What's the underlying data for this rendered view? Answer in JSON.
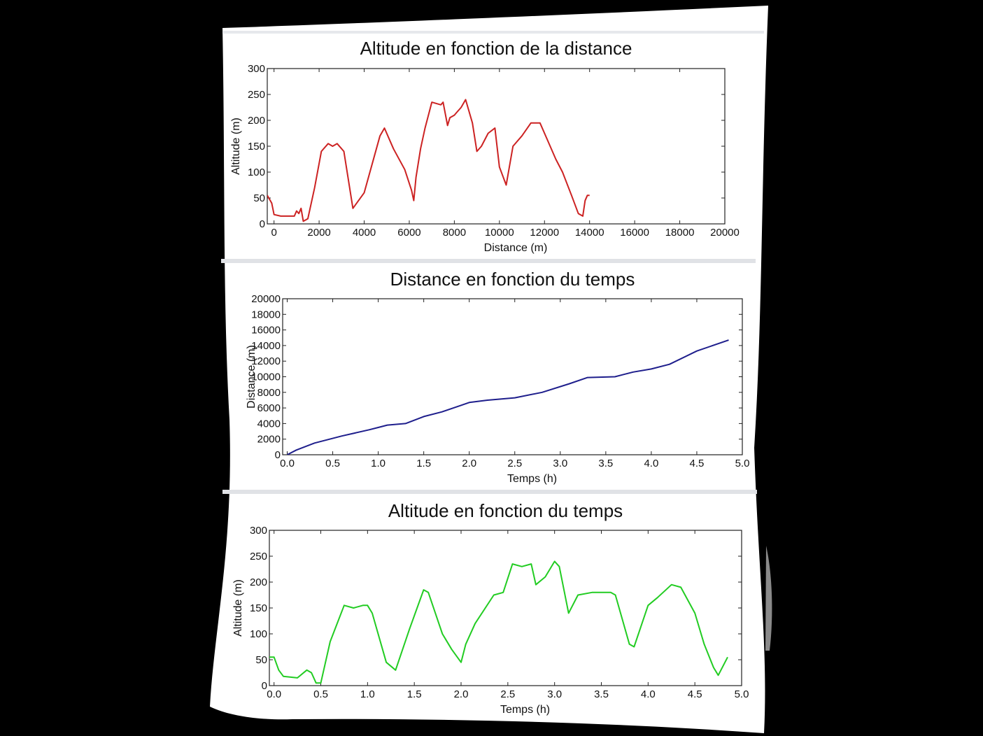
{
  "chart_data": [
    {
      "type": "line",
      "title": "Altitude en fonction de la distance",
      "xlabel": "Distance (m)",
      "ylabel": "Altitude (m)",
      "xlim": [
        -300,
        20000
      ],
      "ylim": [
        0,
        300
      ],
      "xticks": [
        0,
        2000,
        4000,
        6000,
        8000,
        10000,
        12000,
        14000,
        16000,
        18000,
        20000
      ],
      "xtick_labels": [
        "0",
        "2000",
        "4000",
        "6000",
        "8000",
        "10000",
        "12000",
        "14000",
        "16000",
        "18000",
        "20000"
      ],
      "yticks": [
        0,
        50,
        100,
        150,
        200,
        250,
        300
      ],
      "ytick_labels": [
        "0",
        "50",
        "100",
        "150",
        "200",
        "250",
        "300"
      ],
      "grid": false,
      "color": "#cc2222",
      "series": [
        {
          "x": [
            -300,
            -100,
            0,
            300,
            900,
            1000,
            1100,
            1200,
            1300,
            1500,
            1800,
            2100,
            2400,
            2600,
            2800,
            3100,
            3500,
            4000,
            4700,
            4900,
            5300,
            5800,
            6100,
            6200,
            6300,
            6500,
            6700,
            7000,
            7400,
            7500,
            7700,
            7800,
            8000,
            8100,
            8300,
            8500,
            8800,
            9000,
            9200,
            9500,
            9800,
            10000,
            10300,
            10600,
            11000,
            11400,
            11800,
            12100,
            12500,
            12800,
            13200,
            13500,
            13700,
            13800,
            13900,
            14000
          ],
          "y": [
            55,
            40,
            18,
            15,
            15,
            25,
            20,
            30,
            5,
            10,
            70,
            140,
            155,
            150,
            155,
            140,
            30,
            60,
            170,
            185,
            145,
            105,
            65,
            45,
            90,
            145,
            185,
            235,
            230,
            235,
            190,
            205,
            210,
            215,
            225,
            240,
            195,
            140,
            150,
            175,
            185,
            110,
            75,
            150,
            170,
            195,
            195,
            165,
            125,
            100,
            55,
            20,
            15,
            45,
            55,
            55
          ]
        }
      ]
    },
    {
      "type": "line",
      "title": "Distance en fonction du temps",
      "xlabel": "Temps (h)",
      "ylabel": "Distance (m)",
      "xlim": [
        -0.05,
        5.0
      ],
      "ylim": [
        0,
        20000
      ],
      "xticks": [
        0.0,
        0.5,
        1.0,
        1.5,
        2.0,
        2.5,
        3.0,
        3.5,
        4.0,
        4.5,
        5.0
      ],
      "xtick_labels": [
        "0.0",
        "0.5",
        "1.0",
        "1.5",
        "2.0",
        "2.5",
        "3.0",
        "3.5",
        "4.0",
        "4.5",
        "5.0"
      ],
      "yticks": [
        0,
        2000,
        4000,
        6000,
        8000,
        10000,
        12000,
        14000,
        16000,
        18000,
        20000
      ],
      "ytick_labels": [
        "0",
        "2000",
        "4000",
        "6000",
        "8000",
        "10000",
        "12000",
        "14000",
        "16000",
        "18000",
        "20000"
      ],
      "grid": false,
      "color": "#1e1e8c",
      "series": [
        {
          "x": [
            0.0,
            0.1,
            0.3,
            0.6,
            0.9,
            1.0,
            1.1,
            1.3,
            1.5,
            1.7,
            1.9,
            2.0,
            2.2,
            2.5,
            2.8,
            3.1,
            3.3,
            3.6,
            3.8,
            4.0,
            4.2,
            4.5,
            4.85
          ],
          "y": [
            0,
            600,
            1500,
            2400,
            3200,
            3500,
            3800,
            4000,
            4900,
            5500,
            6300,
            6700,
            7000,
            7300,
            8000,
            9100,
            9900,
            10000,
            10600,
            11000,
            11600,
            13300,
            14700
          ]
        }
      ]
    },
    {
      "type": "line",
      "title": "Altitude en fonction du temps",
      "xlabel": "Temps (h)",
      "ylabel": "Altitude (m)",
      "xlim": [
        -0.05,
        5.0
      ],
      "ylim": [
        0,
        300
      ],
      "xticks": [
        0.0,
        0.5,
        1.0,
        1.5,
        2.0,
        2.5,
        3.0,
        3.5,
        4.0,
        4.5,
        5.0
      ],
      "xtick_labels": [
        "0.0",
        "0.5",
        "1.0",
        "1.5",
        "2.0",
        "2.5",
        "3.0",
        "3.5",
        "4.0",
        "4.5",
        "5.0"
      ],
      "yticks": [
        0,
        50,
        100,
        150,
        200,
        250,
        300
      ],
      "ytick_labels": [
        "0",
        "50",
        "100",
        "150",
        "200",
        "250",
        "300"
      ],
      "grid": false,
      "color": "#22cc22",
      "series": [
        {
          "x": [
            -0.05,
            0.0,
            0.05,
            0.1,
            0.25,
            0.35,
            0.4,
            0.45,
            0.5,
            0.6,
            0.75,
            0.85,
            0.95,
            1.0,
            1.05,
            1.2,
            1.3,
            1.45,
            1.6,
            1.65,
            1.8,
            1.9,
            2.0,
            2.05,
            2.15,
            2.35,
            2.45,
            2.55,
            2.65,
            2.75,
            2.8,
            2.9,
            3.0,
            3.05,
            3.15,
            3.25,
            3.4,
            3.6,
            3.65,
            3.8,
            3.85,
            4.0,
            4.1,
            4.25,
            4.35,
            4.5,
            4.6,
            4.7,
            4.75,
            4.85
          ],
          "y": [
            55,
            55,
            30,
            18,
            15,
            30,
            25,
            5,
            5,
            85,
            155,
            150,
            155,
            155,
            140,
            45,
            30,
            110,
            185,
            180,
            100,
            70,
            45,
            80,
            120,
            175,
            180,
            235,
            230,
            235,
            195,
            210,
            240,
            230,
            140,
            175,
            180,
            180,
            175,
            80,
            75,
            155,
            170,
            195,
            190,
            140,
            80,
            35,
            20,
            55
          ]
        }
      ]
    }
  ]
}
